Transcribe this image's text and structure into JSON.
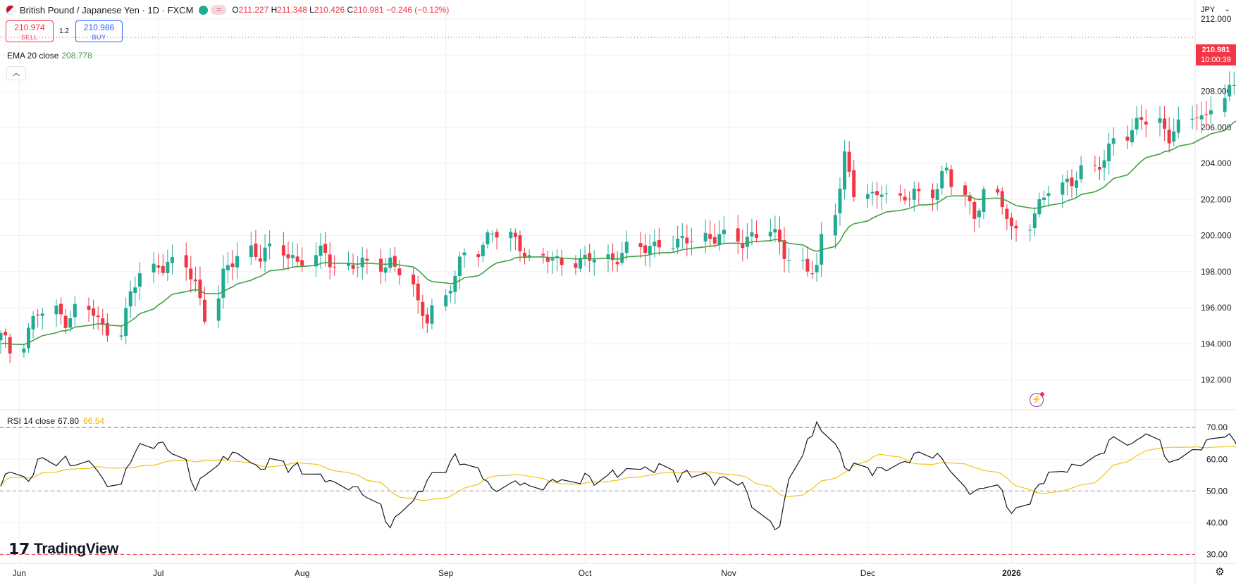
{
  "header": {
    "title": "British Pound / Japanese Yen · 1D · FXCM",
    "badge": "≈",
    "o_label": "O",
    "o_value": "211.227",
    "h_label": "H",
    "h_value": "211.348",
    "l_label": "L",
    "l_value": "210.426",
    "c_label": "C",
    "c_value": "210.981",
    "change": "−0.246 (−0.12%)"
  },
  "trade": {
    "sell_price": "210.974",
    "sell_label": "SELL",
    "spread": "1.2",
    "buy_price": "210.986",
    "buy_label": "BUY"
  },
  "ema_legend": {
    "label": "EMA 20 close",
    "value": "208.778"
  },
  "rsi_legend": {
    "label": "RSI 14 close",
    "value": "67.80",
    "ma_value": "66.54"
  },
  "price_scale": {
    "currency": "JPY",
    "last_price": "210.981",
    "countdown": "10:00:39"
  },
  "logo": {
    "text": "TradingView"
  },
  "colors": {
    "up": "#22ab94",
    "down": "#f23645",
    "ema": "#43a047",
    "rsi": "#131722",
    "rsi_ma": "#f0c419",
    "grid": "#eef0f3"
  },
  "chart_data": {
    "type": "candlestick",
    "x_start": "2025-05-28",
    "x_tick_labels": [
      "Jun",
      "Jul",
      "Aug",
      "Sep",
      "Oct",
      "Nov",
      "Dec",
      "2026"
    ],
    "x_ticks": [
      {
        "date": "2025-06-01",
        "label": "Jun"
      },
      {
        "date": "2025-07-01",
        "label": "Jul"
      },
      {
        "date": "2025-08-01",
        "label": "Aug"
      },
      {
        "date": "2025-09-01",
        "label": "Sep"
      },
      {
        "date": "2025-10-01",
        "label": "Oct"
      },
      {
        "date": "2025-11-01",
        "label": "Nov"
      },
      {
        "date": "2025-12-01",
        "label": "Dec"
      },
      {
        "date": "2026-01-01",
        "label": "2026"
      }
    ],
    "price_ticks": [
      "212.000",
      "210.000",
      "208.000",
      "206.000",
      "204.000",
      "202.000",
      "200.000",
      "198.000",
      "196.000",
      "194.000",
      "192.000"
    ],
    "price_range": [
      190.35,
      213.05
    ],
    "rsi_ticks": [
      "70.00",
      "60.00",
      "50.00",
      "40.00",
      "30.00"
    ],
    "rsi_range": [
      27.2,
      75.6
    ],
    "rsi_levels": {
      "upper": 70,
      "middle": 50,
      "lower": 30
    },
    "close_anchors": [
      [
        0,
        194.4
      ],
      [
        2,
        193.6
      ],
      [
        4,
        194.9
      ],
      [
        6,
        195.7
      ],
      [
        8,
        195.7
      ],
      [
        10,
        195.4
      ],
      [
        12,
        195.9
      ],
      [
        14,
        195.7
      ],
      [
        16,
        194.8
      ],
      [
        18,
        194.9
      ],
      [
        20,
        196.6
      ],
      [
        22,
        197.9
      ],
      [
        24,
        198.4
      ],
      [
        26,
        198.5
      ],
      [
        28,
        198.2
      ],
      [
        30,
        197.3
      ],
      [
        32,
        195.7
      ],
      [
        34,
        197.7
      ],
      [
        36,
        198.5
      ],
      [
        38,
        199.3
      ],
      [
        40,
        198.9
      ],
      [
        42,
        199.1
      ],
      [
        44,
        199.0
      ],
      [
        46,
        198.6
      ],
      [
        48,
        198.8
      ],
      [
        50,
        199.0
      ],
      [
        52,
        198.3
      ],
      [
        54,
        198.4
      ],
      [
        56,
        198.3
      ],
      [
        58,
        198.4
      ],
      [
        60,
        198.6
      ],
      [
        62,
        198.0
      ],
      [
        64,
        196.0
      ],
      [
        66,
        195.6
      ],
      [
        68,
        196.5
      ],
      [
        70,
        197.7
      ],
      [
        72,
        199.1
      ],
      [
        74,
        199.6
      ],
      [
        76,
        200.1
      ],
      [
        78,
        199.9
      ],
      [
        80,
        199.6
      ],
      [
        82,
        198.6
      ],
      [
        84,
        198.7
      ],
      [
        86,
        198.6
      ],
      [
        88,
        198.7
      ],
      [
        90,
        198.5
      ],
      [
        92,
        198.8
      ],
      [
        94,
        198.7
      ],
      [
        96,
        199.1
      ],
      [
        98,
        199.2
      ],
      [
        100,
        199.4
      ],
      [
        102,
        199.7
      ],
      [
        104,
        199.4
      ],
      [
        106,
        199.8
      ],
      [
        108,
        200.0
      ],
      [
        110,
        199.9
      ],
      [
        112,
        199.8
      ],
      [
        114,
        199.7
      ],
      [
        116,
        200.1
      ],
      [
        118,
        200.2
      ],
      [
        120,
        199.5
      ],
      [
        122,
        198.8
      ],
      [
        124,
        198.1
      ],
      [
        126,
        198.0
      ],
      [
        128,
        201.5
      ],
      [
        130,
        204.5
      ],
      [
        132,
        202.3
      ],
      [
        134,
        202.0
      ],
      [
        136,
        202.8
      ],
      [
        138,
        201.9
      ],
      [
        140,
        202.1
      ],
      [
        142,
        202.4
      ],
      [
        144,
        202.8
      ],
      [
        146,
        203.6
      ],
      [
        148,
        202.1
      ],
      [
        150,
        201.3
      ],
      [
        152,
        202.3
      ],
      [
        154,
        201.7
      ],
      [
        156,
        200.3
      ],
      [
        158,
        200.8
      ],
      [
        160,
        201.5
      ],
      [
        162,
        202.6
      ],
      [
        164,
        203.1
      ],
      [
        166,
        203.2
      ],
      [
        168,
        203.6
      ],
      [
        170,
        204.3
      ],
      [
        172,
        205.6
      ],
      [
        174,
        205.5
      ],
      [
        176,
        206.6
      ],
      [
        178,
        206.4
      ],
      [
        180,
        205.4
      ],
      [
        182,
        205.9
      ],
      [
        184,
        207.0
      ],
      [
        186,
        206.5
      ],
      [
        188,
        207.7
      ],
      [
        190,
        208.1
      ],
      [
        192,
        207.9
      ],
      [
        194,
        207.3
      ],
      [
        196,
        208.3
      ],
      [
        198,
        210.5
      ],
      [
        200,
        210.6
      ],
      [
        202,
        210.7
      ],
      [
        204,
        211.0
      ],
      [
        206,
        210.98
      ]
    ],
    "ema": {
      "name": "EMA 20 close",
      "last": 208.778
    },
    "rsi": {
      "name": "RSI 14 close",
      "last": 67.8,
      "ma_last": 66.54
    },
    "rsi_anchors": [
      [
        0,
        51.5
      ],
      [
        2,
        57
      ],
      [
        4,
        52
      ],
      [
        6,
        60
      ],
      [
        8,
        59
      ],
      [
        10,
        60
      ],
      [
        12,
        58
      ],
      [
        14,
        59
      ],
      [
        16,
        53
      ],
      [
        18,
        52
      ],
      [
        20,
        60
      ],
      [
        22,
        64
      ],
      [
        24,
        65
      ],
      [
        26,
        64
      ],
      [
        28,
        59
      ],
      [
        30,
        50
      ],
      [
        32,
        56
      ],
      [
        34,
        60
      ],
      [
        36,
        62
      ],
      [
        38,
        60
      ],
      [
        40,
        56
      ],
      [
        42,
        60
      ],
      [
        44,
        57
      ],
      [
        46,
        58
      ],
      [
        48,
        55
      ],
      [
        50,
        54
      ],
      [
        52,
        52
      ],
      [
        54,
        51
      ],
      [
        56,
        50
      ],
      [
        58,
        45
      ],
      [
        60,
        38
      ],
      [
        62,
        44
      ],
      [
        64,
        49
      ],
      [
        66,
        53
      ],
      [
        68,
        57
      ],
      [
        70,
        61
      ],
      [
        72,
        58
      ],
      [
        74,
        55
      ],
      [
        76,
        50
      ],
      [
        78,
        52
      ],
      [
        80,
        53
      ],
      [
        82,
        51
      ],
      [
        84,
        52
      ],
      [
        86,
        54
      ],
      [
        88,
        52
      ],
      [
        90,
        55
      ],
      [
        92,
        53
      ],
      [
        94,
        56
      ],
      [
        96,
        55
      ],
      [
        98,
        58
      ],
      [
        100,
        56
      ],
      [
        102,
        58
      ],
      [
        104,
        54
      ],
      [
        106,
        56
      ],
      [
        108,
        55
      ],
      [
        110,
        53
      ],
      [
        112,
        54
      ],
      [
        114,
        52
      ],
      [
        116,
        46
      ],
      [
        118,
        40
      ],
      [
        120,
        38
      ],
      [
        122,
        55
      ],
      [
        124,
        66
      ],
      [
        126,
        71
      ],
      [
        128,
        66
      ],
      [
        130,
        57
      ],
      [
        132,
        58
      ],
      [
        134,
        56
      ],
      [
        136,
        57
      ],
      [
        138,
        58
      ],
      [
        140,
        60
      ],
      [
        142,
        62
      ],
      [
        144,
        61
      ],
      [
        146,
        59
      ],
      [
        148,
        51
      ],
      [
        150,
        49
      ],
      [
        152,
        52
      ],
      [
        154,
        50
      ],
      [
        156,
        42
      ],
      [
        158,
        47
      ],
      [
        160,
        52
      ],
      [
        162,
        55
      ],
      [
        164,
        57
      ],
      [
        166,
        58
      ],
      [
        168,
        60
      ],
      [
        170,
        63
      ],
      [
        172,
        67
      ],
      [
        174,
        64
      ],
      [
        176,
        68
      ],
      [
        178,
        66
      ],
      [
        180,
        58
      ],
      [
        182,
        61
      ],
      [
        184,
        63
      ],
      [
        186,
        65
      ],
      [
        188,
        68
      ],
      [
        190,
        66
      ],
      [
        192,
        63
      ],
      [
        194,
        61
      ],
      [
        196,
        65
      ],
      [
        198,
        72
      ],
      [
        200,
        73
      ],
      [
        202,
        71
      ],
      [
        204,
        68
      ],
      [
        206,
        67.8
      ]
    ]
  }
}
